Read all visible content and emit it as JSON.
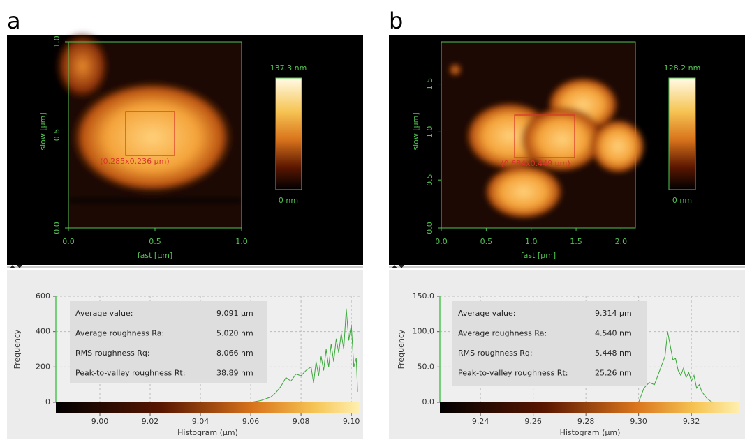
{
  "panels": [
    {
      "label": "a",
      "image": {
        "xlabel": "fast [µm]",
        "ylabel": "slow [µm]",
        "xlim": [
          0,
          1.0
        ],
        "ylim": [
          0,
          1.0
        ],
        "xticks": [
          {
            "value": 0,
            "label": "0.0"
          },
          {
            "value": 0.5,
            "label": "0.5"
          },
          {
            "value": 1,
            "label": "1.0"
          }
        ],
        "yticks": [
          {
            "value": 0,
            "label": "0.0"
          },
          {
            "value": 0.5,
            "label": "0.5"
          },
          {
            "value": 1,
            "label": "1.0"
          }
        ],
        "scale_max": "137.3 nm",
        "scale_min": "0 nm",
        "selection": "(0.285x0.236 µm)"
      },
      "stats": [
        {
          "label": "Average value:",
          "value": "9.091 µm"
        },
        {
          "label": "Average roughness Ra:",
          "value": "5.020 nm"
        },
        {
          "label": "RMS roughness Rq:",
          "value": "8.066 nm"
        },
        {
          "label": "Peak-to-valley roughness Rt:",
          "value": "38.89 nm"
        }
      ]
    },
    {
      "label": "b",
      "image": {
        "xlabel": "fast [µm]",
        "ylabel": "slow [µm]",
        "xlim": [
          0,
          2.16
        ],
        "ylim": [
          0,
          1.94
        ],
        "xticks": [
          {
            "value": 0,
            "label": "0.0"
          },
          {
            "value": 0.5,
            "label": "0.5"
          },
          {
            "value": 1,
            "label": "1.0"
          },
          {
            "value": 1.5,
            "label": "1.5"
          },
          {
            "value": 2,
            "label": "2.0"
          }
        ],
        "yticks": [
          {
            "value": 0,
            "label": "0.0"
          },
          {
            "value": 0.5,
            "label": "0.5"
          },
          {
            "value": 1,
            "label": "1.0"
          },
          {
            "value": 1.5,
            "label": "1.5"
          }
        ],
        "scale_max": "128.2 nm",
        "scale_min": "0 nm",
        "selection": "(0.684x0.449 µm)"
      },
      "stats": [
        {
          "label": "Average value:",
          "value": "9.314 µm"
        },
        {
          "label": "Average roughness Ra:",
          "value": "4.540 nm"
        },
        {
          "label": "RMS roughness Rq:",
          "value": "5.448 nm"
        },
        {
          "label": "Peak-to-valley roughness Rt:",
          "value": "25.26 nm"
        }
      ]
    }
  ],
  "chart_data": [
    {
      "type": "line",
      "xlabel": "Histogram (µm)",
      "ylabel": "Frequency",
      "grid": true,
      "xlim": [
        8.9825,
        9.1033
      ],
      "ylim": [
        0,
        600
      ],
      "xticks": [
        {
          "value": 9.0,
          "label": "9.00"
        },
        {
          "value": 9.02,
          "label": "9.02"
        },
        {
          "value": 9.04,
          "label": "9.04"
        },
        {
          "value": 9.06,
          "label": "9.06"
        },
        {
          "value": 9.08,
          "label": "9.08"
        },
        {
          "value": 9.1,
          "label": "9.10"
        }
      ],
      "yticks": [
        0,
        200,
        400,
        600
      ],
      "x": [
        9.06,
        9.064,
        9.068,
        9.07,
        9.072,
        9.074,
        9.076,
        9.078,
        9.08,
        9.082,
        9.084,
        9.085,
        9.086,
        9.087,
        9.088,
        9.089,
        9.09,
        9.091,
        9.092,
        9.093,
        9.094,
        9.095,
        9.096,
        9.097,
        9.098,
        9.099,
        9.1,
        9.101,
        9.102,
        9.1025
      ],
      "series": [
        {
          "color": "#3aa83a",
          "values": [
            0,
            10,
            30,
            55,
            90,
            140,
            120,
            160,
            150,
            180,
            200,
            110,
            230,
            150,
            260,
            180,
            300,
            200,
            330,
            230,
            360,
            280,
            390,
            300,
            530,
            350,
            440,
            200,
            250,
            60
          ]
        }
      ]
    },
    {
      "type": "line",
      "xlabel": "Histogram (µm)",
      "ylabel": "Frequency",
      "grid": true,
      "xlim": [
        9.2246,
        9.3385
      ],
      "ylim": [
        0,
        150
      ],
      "xticks": [
        {
          "value": 9.24,
          "label": "9.24"
        },
        {
          "value": 9.26,
          "label": "9.26"
        },
        {
          "value": 9.28,
          "label": "9.28"
        },
        {
          "value": 9.3,
          "label": "9.30"
        },
        {
          "value": 9.32,
          "label": "9.32"
        }
      ],
      "yticks": [
        {
          "value": 0,
          "label": "0.0"
        },
        {
          "value": 50,
          "label": "50.0"
        },
        {
          "value": 100,
          "label": "100.0"
        },
        {
          "value": 150,
          "label": "150.0"
        }
      ],
      "x": [
        9.3,
        9.302,
        9.304,
        9.306,
        9.308,
        9.31,
        9.311,
        9.312,
        9.313,
        9.314,
        9.315,
        9.316,
        9.317,
        9.318,
        9.319,
        9.32,
        9.321,
        9.322,
        9.323,
        9.324,
        9.326,
        9.328
      ],
      "series": [
        {
          "color": "#3aa83a",
          "values": [
            0,
            20,
            28,
            25,
            45,
            65,
            100,
            80,
            60,
            62,
            45,
            38,
            48,
            35,
            42,
            30,
            38,
            20,
            25,
            15,
            5,
            0
          ]
        }
      ]
    }
  ]
}
